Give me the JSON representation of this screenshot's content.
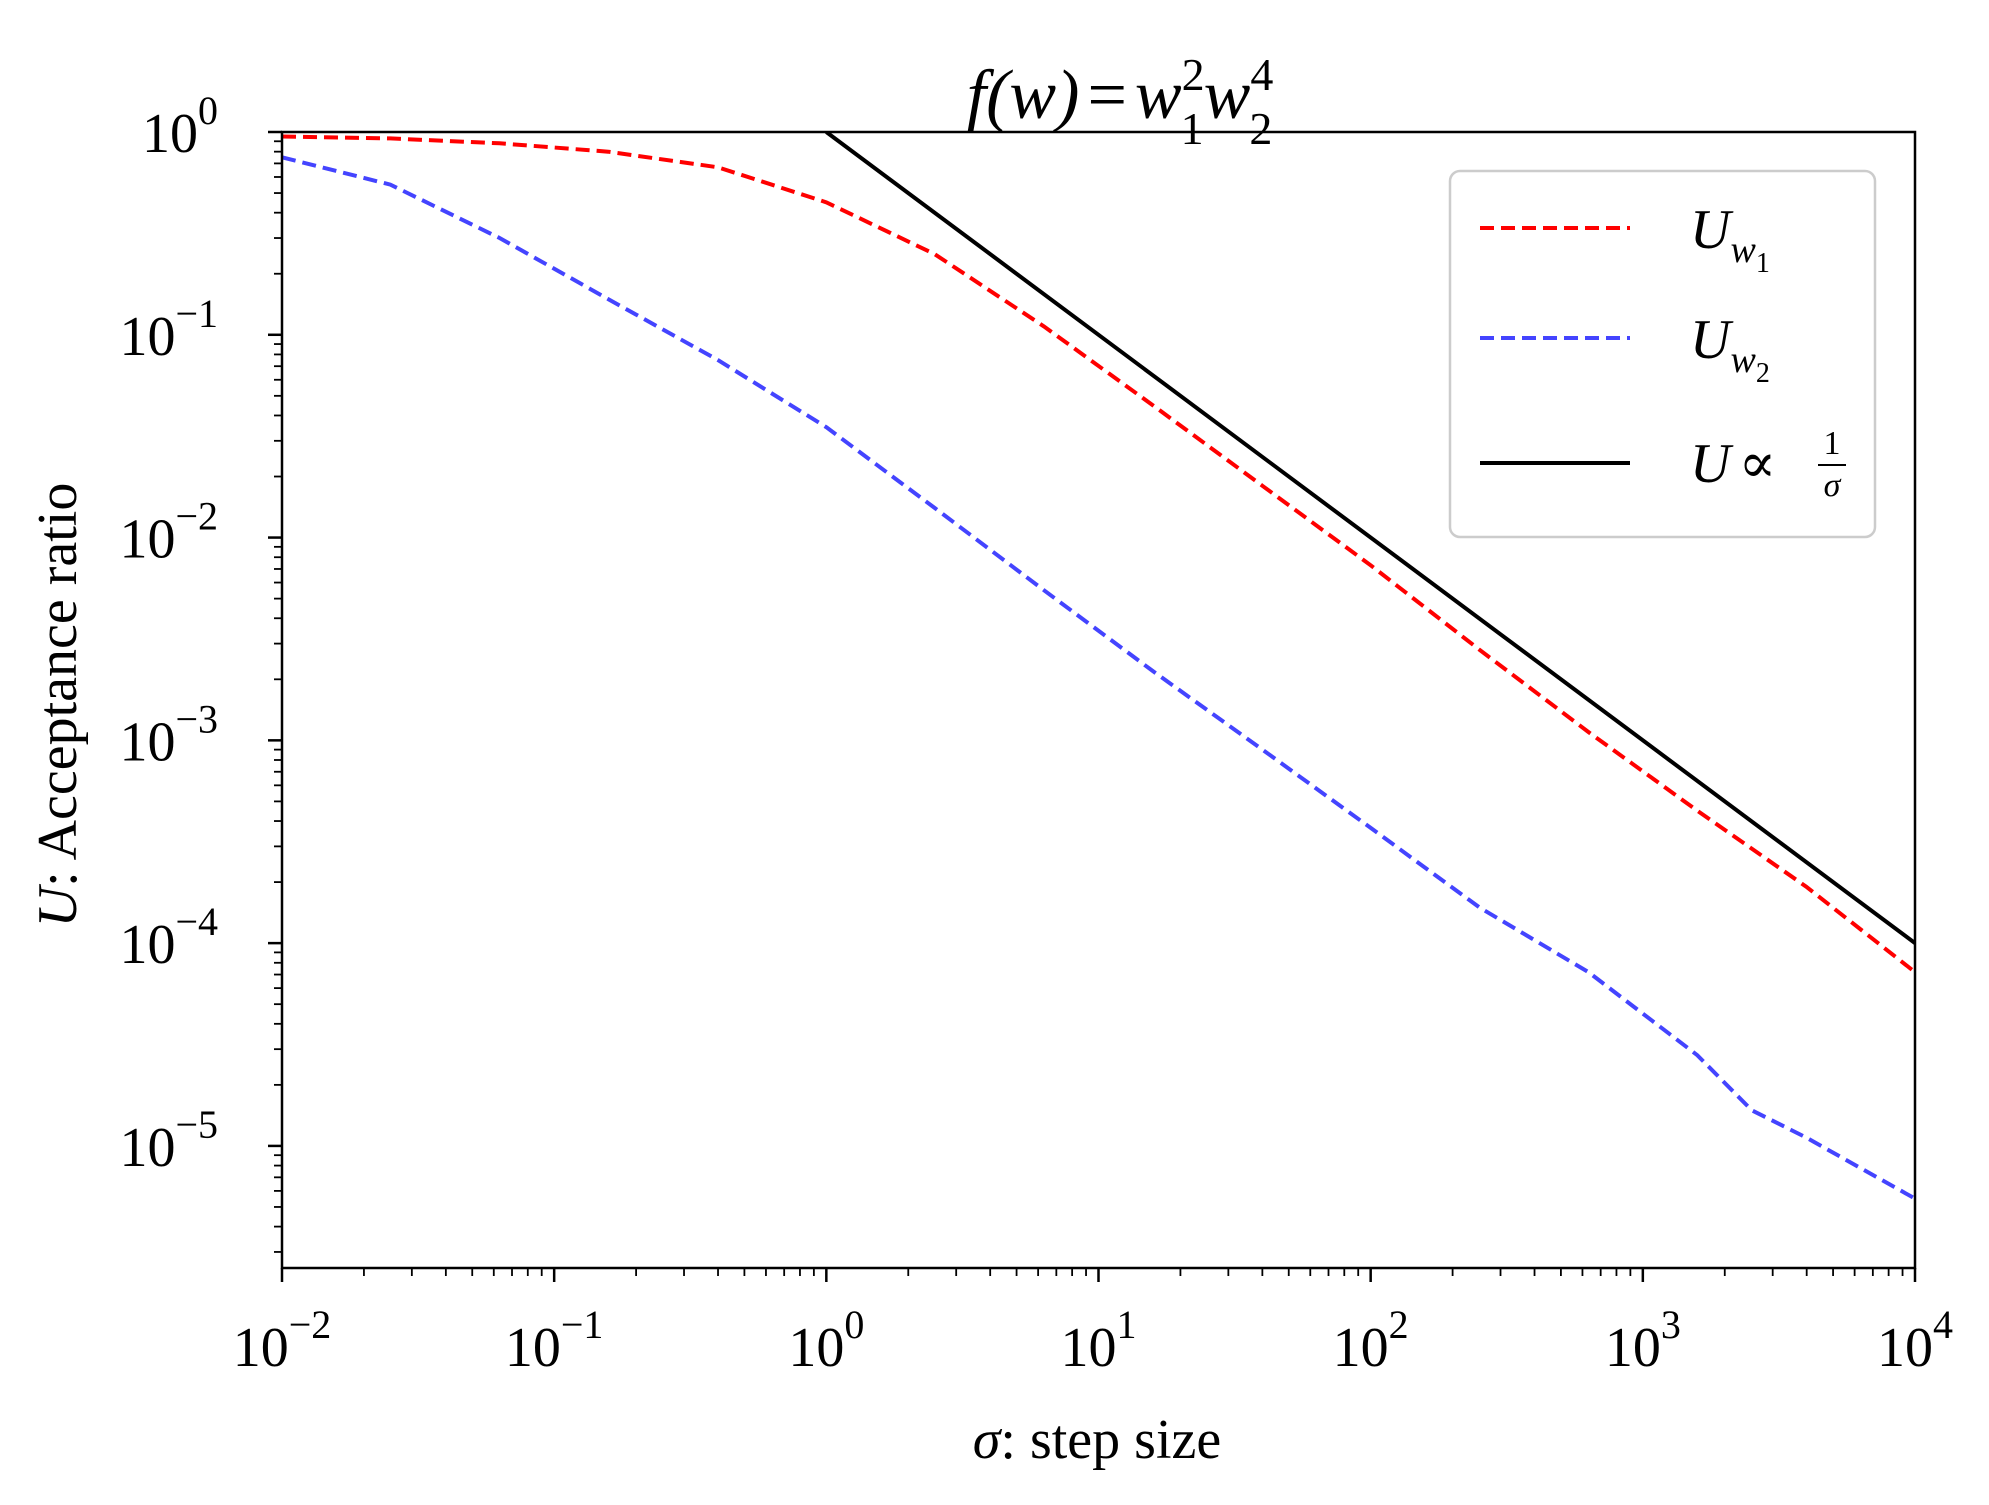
{
  "chart_data": {
    "type": "line",
    "title": {
      "lhs": "f(w)",
      "eq": "=",
      "base1": "w",
      "sub1": "1",
      "sup1": "2",
      "base2": "w",
      "sub2": "2",
      "sup2": "4"
    },
    "xlabel": {
      "var": "σ",
      "text": ": step size"
    },
    "ylabel": {
      "var": "U",
      "text": ": Acceptance ratio"
    },
    "x_scale": "log",
    "y_scale": "log",
    "xlim": [
      0.01,
      10000
    ],
    "ylim": [
      2.5e-06,
      1
    ],
    "x_ticks": [
      {
        "base": "10",
        "exp": "−2",
        "value": 0.01
      },
      {
        "base": "10",
        "exp": "−1",
        "value": 0.1
      },
      {
        "base": "10",
        "exp": "0",
        "value": 1
      },
      {
        "base": "10",
        "exp": "1",
        "value": 10
      },
      {
        "base": "10",
        "exp": "2",
        "value": 100
      },
      {
        "base": "10",
        "exp": "3",
        "value": 1000
      },
      {
        "base": "10",
        "exp": "4",
        "value": 10000
      }
    ],
    "y_ticks": [
      {
        "base": "10",
        "exp": "0",
        "value": 1
      },
      {
        "base": "10",
        "exp": "−1",
        "value": 0.1
      },
      {
        "base": "10",
        "exp": "−2",
        "value": 0.01
      },
      {
        "base": "10",
        "exp": "−3",
        "value": 0.001
      },
      {
        "base": "10",
        "exp": "−4",
        "value": 0.0001
      },
      {
        "base": "10",
        "exp": "−5",
        "value": 1e-05
      }
    ],
    "legend_position": "top-right",
    "series": [
      {
        "name": "U_w1",
        "legend": {
          "base": "U",
          "sub": "w",
          "subsub": "1"
        },
        "color": "#ff0000",
        "style": "dashed",
        "x": [
          0.01,
          0.025,
          0.063,
          0.158,
          0.4,
          1.0,
          2.5,
          6.3,
          15.8,
          40,
          100,
          251,
          631,
          1585,
          3981,
          10000
        ],
        "y": [
          0.95,
          0.93,
          0.88,
          0.8,
          0.67,
          0.45,
          0.25,
          0.11,
          0.045,
          0.018,
          0.0073,
          0.0028,
          0.0011,
          0.00045,
          0.00019,
          7.2e-05
        ]
      },
      {
        "name": "U_w2",
        "legend": {
          "base": "U",
          "sub": "w",
          "subsub": "2"
        },
        "color": "#4444ff",
        "style": "dashed",
        "x": [
          0.01,
          0.025,
          0.063,
          0.158,
          0.4,
          1.0,
          2.5,
          6.3,
          15.8,
          40,
          100,
          251,
          631,
          1585,
          2512,
          3981,
          10000
        ],
        "y": [
          0.75,
          0.55,
          0.3,
          0.15,
          0.075,
          0.035,
          0.014,
          0.0055,
          0.0022,
          0.0009,
          0.00037,
          0.00015,
          7.2e-05,
          2.8e-05,
          1.5e-05,
          1.1e-05,
          5.5e-06
        ]
      },
      {
        "name": "U ∝ 1/σ",
        "legend": {
          "base": "U",
          "prop": "∝",
          "num": "1",
          "den": "σ"
        },
        "color": "#000000",
        "style": "solid",
        "x": [
          1,
          10000
        ],
        "y": [
          1,
          0.0001
        ]
      }
    ]
  }
}
